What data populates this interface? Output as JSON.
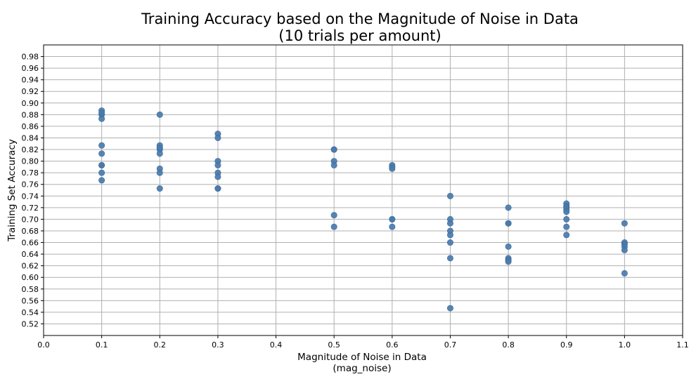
{
  "chart_data": {
    "type": "scatter",
    "title": "Training Accuracy based on the Magnitude of Noise in Data",
    "subtitle": "(10 trials per amount)",
    "xlabel": "Magnitude of Noise in Data",
    "xlabel_sub": "(mag_noise)",
    "ylabel": "Training Set Accuracy",
    "xlim": [
      0.0,
      1.1
    ],
    "ylim": [
      0.5,
      1.0
    ],
    "grid": true,
    "color": "#4a7bab",
    "x_ticks": [
      "0.0",
      "0.1",
      "0.2",
      "0.3",
      "0.4",
      "0.5",
      "0.6",
      "0.7",
      "0.8",
      "0.9",
      "1.0",
      "1.1"
    ],
    "y_ticks": [
      "0.52",
      "0.54",
      "0.56",
      "0.58",
      "0.60",
      "0.62",
      "0.64",
      "0.66",
      "0.68",
      "0.70",
      "0.72",
      "0.74",
      "0.76",
      "0.78",
      "0.80",
      "0.82",
      "0.84",
      "0.86",
      "0.88",
      "0.90",
      "0.92",
      "0.94",
      "0.96",
      "0.98"
    ],
    "points": [
      [
        0.1,
        0.887
      ],
      [
        0.1,
        0.88
      ],
      [
        0.1,
        0.873
      ],
      [
        0.1,
        0.827
      ],
      [
        0.1,
        0.813
      ],
      [
        0.1,
        0.793
      ],
      [
        0.1,
        0.793
      ],
      [
        0.1,
        0.78
      ],
      [
        0.1,
        0.767
      ],
      [
        0.1,
        0.883
      ],
      [
        0.2,
        0.88
      ],
      [
        0.2,
        0.827
      ],
      [
        0.2,
        0.82
      ],
      [
        0.2,
        0.813
      ],
      [
        0.2,
        0.787
      ],
      [
        0.2,
        0.78
      ],
      [
        0.2,
        0.753
      ],
      [
        0.2,
        0.823
      ],
      [
        0.3,
        0.847
      ],
      [
        0.3,
        0.84
      ],
      [
        0.3,
        0.8
      ],
      [
        0.3,
        0.793
      ],
      [
        0.3,
        0.78
      ],
      [
        0.3,
        0.773
      ],
      [
        0.3,
        0.753
      ],
      [
        0.3,
        0.753
      ],
      [
        0.5,
        0.82
      ],
      [
        0.5,
        0.82
      ],
      [
        0.5,
        0.8
      ],
      [
        0.5,
        0.793
      ],
      [
        0.5,
        0.707
      ],
      [
        0.5,
        0.687
      ],
      [
        0.6,
        0.793
      ],
      [
        0.6,
        0.79
      ],
      [
        0.6,
        0.787
      ],
      [
        0.6,
        0.7
      ],
      [
        0.6,
        0.7
      ],
      [
        0.6,
        0.687
      ],
      [
        0.7,
        0.74
      ],
      [
        0.7,
        0.7
      ],
      [
        0.7,
        0.693
      ],
      [
        0.7,
        0.68
      ],
      [
        0.7,
        0.673
      ],
      [
        0.7,
        0.66
      ],
      [
        0.7,
        0.633
      ],
      [
        0.7,
        0.547
      ],
      [
        0.8,
        0.72
      ],
      [
        0.8,
        0.693
      ],
      [
        0.8,
        0.693
      ],
      [
        0.8,
        0.653
      ],
      [
        0.8,
        0.633
      ],
      [
        0.8,
        0.63
      ],
      [
        0.8,
        0.627
      ],
      [
        0.9,
        0.727
      ],
      [
        0.9,
        0.723
      ],
      [
        0.9,
        0.72
      ],
      [
        0.9,
        0.717
      ],
      [
        0.9,
        0.713
      ],
      [
        0.9,
        0.7
      ],
      [
        0.9,
        0.687
      ],
      [
        0.9,
        0.673
      ],
      [
        1.0,
        0.693
      ],
      [
        1.0,
        0.66
      ],
      [
        1.0,
        0.657
      ],
      [
        1.0,
        0.653
      ],
      [
        1.0,
        0.647
      ],
      [
        1.0,
        0.607
      ]
    ]
  }
}
